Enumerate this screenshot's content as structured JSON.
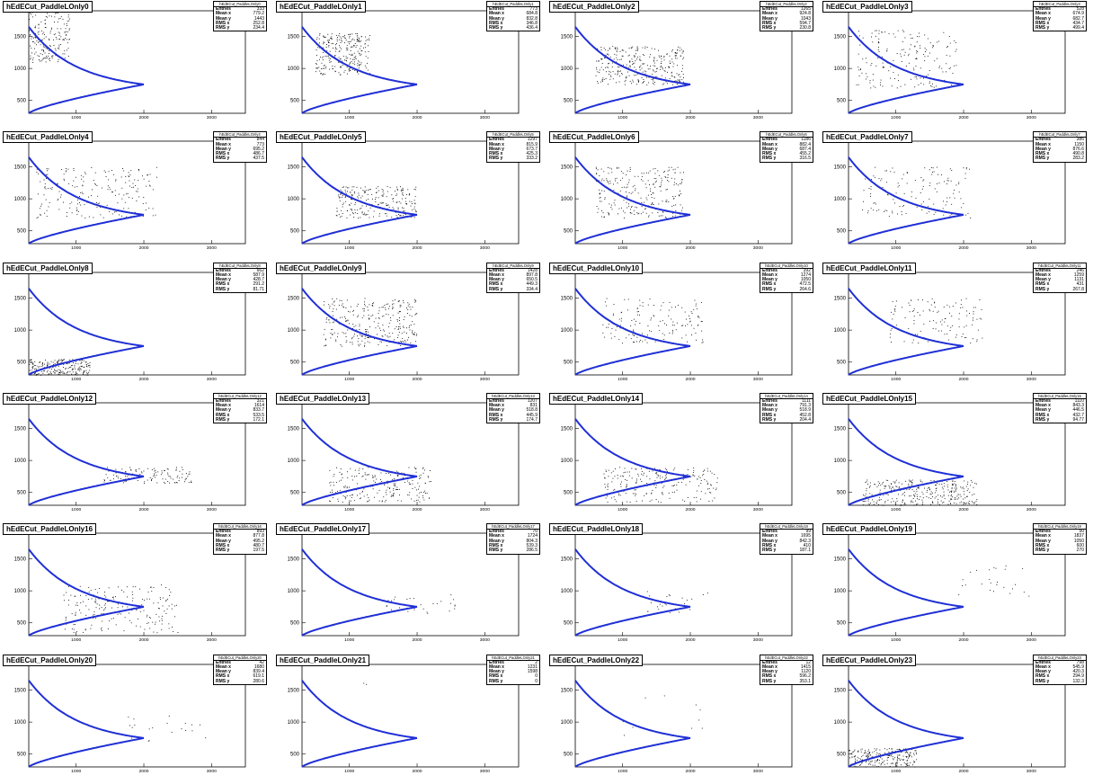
{
  "colors": {
    "curve": "#1f2fd6",
    "points": "#000000",
    "frame": "#000000"
  },
  "stat_labels": [
    "Entries",
    "Mean x",
    "Mean y",
    "RMS x",
    "RMS y"
  ],
  "chart_data": [
    {
      "type": "scatter",
      "title": "hEdECut_PaddleLOnly0",
      "stats": {
        "entries": "333",
        "mean_x": "779.2",
        "mean_y": "1443",
        "rms_x": "252.8",
        "rms_y": "234.4"
      },
      "xlim": [
        300,
        3500
      ],
      "ylim": [
        300,
        1900
      ],
      "xticks": [
        1000,
        2000,
        3000
      ],
      "yticks": [
        500,
        1000,
        1500
      ],
      "cluster": {
        "x": [
          300,
          900
        ],
        "y": [
          1100,
          1900
        ],
        "n": 180
      }
    },
    {
      "type": "scatter",
      "title": "hEdECut_PaddleLOnly1",
      "stats": {
        "entries": "773",
        "mean_x": "684.8",
        "mean_y": "832.8",
        "rms_x": "346.8",
        "rms_y": "436.4"
      },
      "xlim": [
        300,
        3500
      ],
      "ylim": [
        300,
        1900
      ],
      "xticks": [
        1000,
        2000,
        3000
      ],
      "yticks": [
        500,
        1000,
        1500
      ],
      "cluster": {
        "x": [
          500,
          1300
        ],
        "y": [
          900,
          1550
        ],
        "n": 260
      }
    },
    {
      "type": "scatter",
      "title": "hEdECut_PaddleLOnly2",
      "stats": {
        "entries": "1265",
        "mean_x": "924.8",
        "mean_y": "1043",
        "rms_x": "594.7",
        "rms_y": "230.8"
      },
      "xlim": [
        300,
        3500
      ],
      "ylim": [
        300,
        1900
      ],
      "xticks": [
        1000,
        2000,
        3000
      ],
      "yticks": [
        500,
        1000,
        1500
      ],
      "cluster": {
        "x": [
          600,
          1900
        ],
        "y": [
          750,
          1350
        ],
        "n": 320
      }
    },
    {
      "type": "scatter",
      "title": "hEdECut_PaddleLOnly3",
      "stats": {
        "entries": "528",
        "mean_x": "674.9",
        "mean_y": "682.7",
        "rms_x": "434.7",
        "rms_y": "499.4"
      },
      "xlim": [
        300,
        3500
      ],
      "ylim": [
        300,
        1900
      ],
      "xticks": [
        1000,
        2000,
        3000
      ],
      "yticks": [
        500,
        1000,
        1500
      ],
      "cluster": {
        "x": [
          400,
          1900
        ],
        "y": [
          700,
          1600
        ],
        "n": 180
      }
    },
    {
      "type": "scatter",
      "title": "hEdECut_PaddleLOnly4",
      "stats": {
        "entries": "844",
        "mean_x": "773",
        "mean_y": "695.2",
        "rms_x": "486.7",
        "rms_y": "437.5"
      },
      "xlim": [
        300,
        3500
      ],
      "ylim": [
        300,
        1900
      ],
      "xticks": [
        1000,
        2000,
        3000
      ],
      "yticks": [
        500,
        1000,
        1500
      ],
      "cluster": {
        "x": [
          400,
          2200
        ],
        "y": [
          700,
          1500
        ],
        "n": 200
      }
    },
    {
      "type": "scatter",
      "title": "hEdECut_PaddleLOnly5",
      "stats": {
        "entries": "1297",
        "mean_x": "815.9",
        "mean_y": "673.7",
        "rms_x": "425.3",
        "rms_y": "333.2"
      },
      "xlim": [
        300,
        3500
      ],
      "ylim": [
        300,
        1900
      ],
      "xticks": [
        1000,
        2000,
        3000
      ],
      "yticks": [
        500,
        1000,
        1500
      ],
      "cluster": {
        "x": [
          800,
          2000
        ],
        "y": [
          700,
          1200
        ],
        "n": 240
      }
    },
    {
      "type": "scatter",
      "title": "hEdECut_PaddleLOnly6",
      "stats": {
        "entries": "1186",
        "mean_x": "882.4",
        "mean_y": "687.4",
        "rms_x": "455.2",
        "rms_y": "316.5"
      },
      "xlim": [
        300,
        3500
      ],
      "ylim": [
        300,
        1900
      ],
      "xticks": [
        1000,
        2000,
        3000
      ],
      "yticks": [
        500,
        1000,
        1500
      ],
      "cluster": {
        "x": [
          600,
          1900
        ],
        "y": [
          700,
          1500
        ],
        "n": 260
      }
    },
    {
      "type": "scatter",
      "title": "hEdECut_PaddleLOnly7",
      "stats": {
        "entries": "386",
        "mean_x": "1150",
        "mean_y": "876.6",
        "rms_x": "490.8",
        "rms_y": "283.2"
      },
      "xlim": [
        300,
        3500
      ],
      "ylim": [
        300,
        1900
      ],
      "xticks": [
        1000,
        2000,
        3000
      ],
      "yticks": [
        500,
        1000,
        1500
      ],
      "cluster": {
        "x": [
          500,
          2100
        ],
        "y": [
          700,
          1500
        ],
        "n": 140
      }
    },
    {
      "type": "scatter",
      "title": "hEdECut_PaddleLOnly8",
      "stats": {
        "entries": "662",
        "mean_x": "587.9",
        "mean_y": "428.7",
        "rms_x": "291.2",
        "rms_y": "81.71"
      },
      "xlim": [
        300,
        3500
      ],
      "ylim": [
        300,
        1900
      ],
      "xticks": [
        1000,
        2000,
        3000
      ],
      "yticks": [
        500,
        1000,
        1500
      ],
      "cluster": {
        "x": [
          300,
          1200
        ],
        "y": [
          300,
          550
        ],
        "n": 220
      }
    },
    {
      "type": "scatter",
      "title": "hEdECut_PaddleLOnly9",
      "stats": {
        "entries": "1428",
        "mean_x": "897.8",
        "mean_y": "650.5",
        "rms_x": "449.3",
        "rms_y": "334.4"
      },
      "xlim": [
        300,
        3500
      ],
      "ylim": [
        300,
        1900
      ],
      "xticks": [
        1000,
        2000,
        3000
      ],
      "yticks": [
        500,
        1000,
        1500
      ],
      "cluster": {
        "x": [
          600,
          2000
        ],
        "y": [
          750,
          1500
        ],
        "n": 300
      }
    },
    {
      "type": "scatter",
      "title": "hEdECut_PaddleLOnly10",
      "stats": {
        "entries": "392",
        "mean_x": "1274",
        "mean_y": "1050",
        "rms_x": "472.5",
        "rms_y": "264.6"
      },
      "xlim": [
        300,
        3500
      ],
      "ylim": [
        300,
        1900
      ],
      "xticks": [
        1000,
        2000,
        3000
      ],
      "yticks": [
        500,
        1000,
        1500
      ],
      "cluster": {
        "x": [
          700,
          2200
        ],
        "y": [
          800,
          1500
        ],
        "n": 150
      }
    },
    {
      "type": "scatter",
      "title": "hEdECut_PaddleLOnly11",
      "stats": {
        "entries": "246",
        "mean_x": "1259",
        "mean_y": "1131",
        "rms_x": "431",
        "rms_y": "267.8"
      },
      "xlim": [
        300,
        3500
      ],
      "ylim": [
        300,
        1900
      ],
      "xticks": [
        1000,
        2000,
        3000
      ],
      "yticks": [
        500,
        1000,
        1500
      ],
      "cluster": {
        "x": [
          900,
          2300
        ],
        "y": [
          800,
          1500
        ],
        "n": 120
      }
    },
    {
      "type": "scatter",
      "title": "hEdECut_PaddleLOnly12",
      "stats": {
        "entries": "321",
        "mean_x": "1614",
        "mean_y": "833.7",
        "rms_x": "533.5",
        "rms_y": "172.1"
      },
      "xlim": [
        300,
        3500
      ],
      "ylim": [
        300,
        1900
      ],
      "xticks": [
        1000,
        2000,
        3000
      ],
      "yticks": [
        500,
        1000,
        1500
      ],
      "cluster": {
        "x": [
          1400,
          2700
        ],
        "y": [
          650,
          900
        ],
        "n": 120
      }
    },
    {
      "type": "scatter",
      "title": "hEdECut_PaddleLOnly13",
      "stats": {
        "entries": "1207",
        "mean_x": "831",
        "mean_y": "518.8",
        "rms_x": "445.9",
        "rms_y": "174.7"
      },
      "xlim": [
        300,
        3500
      ],
      "ylim": [
        300,
        1900
      ],
      "xticks": [
        1000,
        2000,
        3000
      ],
      "yticks": [
        500,
        1000,
        1500
      ],
      "cluster": {
        "x": [
          700,
          2200
        ],
        "y": [
          350,
          900
        ],
        "n": 220
      }
    },
    {
      "type": "scatter",
      "title": "hEdECut_PaddleLOnly14",
      "stats": {
        "entries": "1111",
        "mean_x": "791.3",
        "mean_y": "518.9",
        "rms_x": "452.8",
        "rms_y": "204.4"
      },
      "xlim": [
        300,
        3500
      ],
      "ylim": [
        300,
        1900
      ],
      "xticks": [
        1000,
        2000,
        3000
      ],
      "yticks": [
        500,
        1000,
        1500
      ],
      "cluster": {
        "x": [
          700,
          2400
        ],
        "y": [
          350,
          900
        ],
        "n": 220
      }
    },
    {
      "type": "scatter",
      "title": "hEdECut_PaddleLOnly15",
      "stats": {
        "entries": "1110",
        "mean_x": "843.3",
        "mean_y": "446.5",
        "rms_x": "432.7",
        "rms_y": "94.77"
      },
      "xlim": [
        300,
        3500
      ],
      "ylim": [
        300,
        1900
      ],
      "xticks": [
        1000,
        2000,
        3000
      ],
      "yticks": [
        500,
        1000,
        1500
      ],
      "cluster": {
        "x": [
          500,
          2200
        ],
        "y": [
          300,
          700
        ],
        "n": 320
      }
    },
    {
      "type": "scatter",
      "title": "hEdECut_PaddleLOnly16",
      "stats": {
        "entries": "893",
        "mean_x": "877.8",
        "mean_y": "495.2",
        "rms_x": "480.7",
        "rms_y": "197.5"
      },
      "xlim": [
        300,
        3500
      ],
      "ylim": [
        300,
        1900
      ],
      "xticks": [
        1000,
        2000,
        3000
      ],
      "yticks": [
        500,
        1000,
        1500
      ],
      "cluster": {
        "x": [
          800,
          2500
        ],
        "y": [
          350,
          1100
        ],
        "n": 200
      }
    },
    {
      "type": "scatter",
      "title": "hEdECut_PaddleLOnly17",
      "stats": {
        "entries": "70",
        "mean_x": "1724",
        "mean_y": "804.3",
        "rms_x": "539.3",
        "rms_y": "286.5"
      },
      "xlim": [
        300,
        3500
      ],
      "ylim": [
        300,
        1900
      ],
      "xticks": [
        1000,
        2000,
        3000
      ],
      "yticks": [
        500,
        1000,
        1500
      ],
      "cluster": {
        "x": [
          1500,
          2600
        ],
        "y": [
          650,
          950
        ],
        "n": 30
      }
    },
    {
      "type": "scatter",
      "title": "hEdECut_PaddleLOnly18",
      "stats": {
        "entries": "99",
        "mean_x": "1695",
        "mean_y": "842.3",
        "rms_x": "410",
        "rms_y": "187.1"
      },
      "xlim": [
        300,
        3500
      ],
      "ylim": [
        300,
        1900
      ],
      "xticks": [
        1000,
        2000,
        3000
      ],
      "yticks": [
        500,
        1000,
        1500
      ],
      "cluster": {
        "x": [
          1300,
          2300
        ],
        "y": [
          650,
          1000
        ],
        "n": 25
      }
    },
    {
      "type": "scatter",
      "title": "hEdECut_PaddleLOnly19",
      "stats": {
        "entries": "50",
        "mean_x": "1837",
        "mean_y": "1050",
        "rms_x": "600",
        "rms_y": "270"
      },
      "xlim": [
        300,
        3500
      ],
      "ylim": [
        300,
        1900
      ],
      "xticks": [
        1000,
        2000,
        3000
      ],
      "yticks": [
        500,
        1000,
        1500
      ],
      "cluster": {
        "x": [
          1900,
          3000
        ],
        "y": [
          900,
          1400
        ],
        "n": 25
      }
    },
    {
      "type": "scatter",
      "title": "hEdECut_PaddleLOnly20",
      "stats": {
        "entries": "42",
        "mean_x": "1680",
        "mean_y": "839.4",
        "rms_x": "619.1",
        "rms_y": "280.6"
      },
      "xlim": [
        300,
        3500
      ],
      "ylim": [
        300,
        1900
      ],
      "xticks": [
        1000,
        2000,
        3000
      ],
      "yticks": [
        500,
        1000,
        1500
      ],
      "cluster": {
        "x": [
          1700,
          3000
        ],
        "y": [
          700,
          1100
        ],
        "n": 20
      }
    },
    {
      "type": "scatter",
      "title": "hEdECut_PaddleLOnly21",
      "stats": {
        "entries": "2",
        "mean_x": "1231",
        "mean_y": "1598",
        "rms_x": "0",
        "rms_y": "0"
      },
      "xlim": [
        300,
        3500
      ],
      "ylim": [
        300,
        1900
      ],
      "xticks": [
        1000,
        2000,
        3000
      ],
      "yticks": [
        500,
        1000,
        1500
      ],
      "cluster": {
        "x": [
          1200,
          1260
        ],
        "y": [
          1580,
          1620
        ],
        "n": 2
      }
    },
    {
      "type": "scatter",
      "title": "hEdECut_PaddleLOnly22",
      "stats": {
        "entries": "12",
        "mean_x": "1415",
        "mean_y": "1120",
        "rms_x": "596.2",
        "rms_y": "353.1"
      },
      "xlim": [
        300,
        3500
      ],
      "ylim": [
        300,
        1900
      ],
      "xticks": [
        1000,
        2000,
        3000
      ],
      "yticks": [
        500,
        1000,
        1500
      ],
      "cluster": {
        "x": [
          1000,
          2200
        ],
        "y": [
          700,
          1500
        ],
        "n": 10
      }
    },
    {
      "type": "scatter",
      "title": "hEdECut_PaddleLOnly23",
      "stats": {
        "entries": "798",
        "mean_x": "545.9",
        "mean_y": "420.3",
        "rms_x": "294.9",
        "rms_y": "132.3"
      },
      "xlim": [
        300,
        3500
      ],
      "ylim": [
        300,
        1900
      ],
      "xticks": [
        1000,
        2000,
        3000
      ],
      "yticks": [
        500,
        1000,
        1500
      ],
      "cluster": {
        "x": [
          300,
          1300
        ],
        "y": [
          300,
          600
        ],
        "n": 220
      }
    }
  ]
}
